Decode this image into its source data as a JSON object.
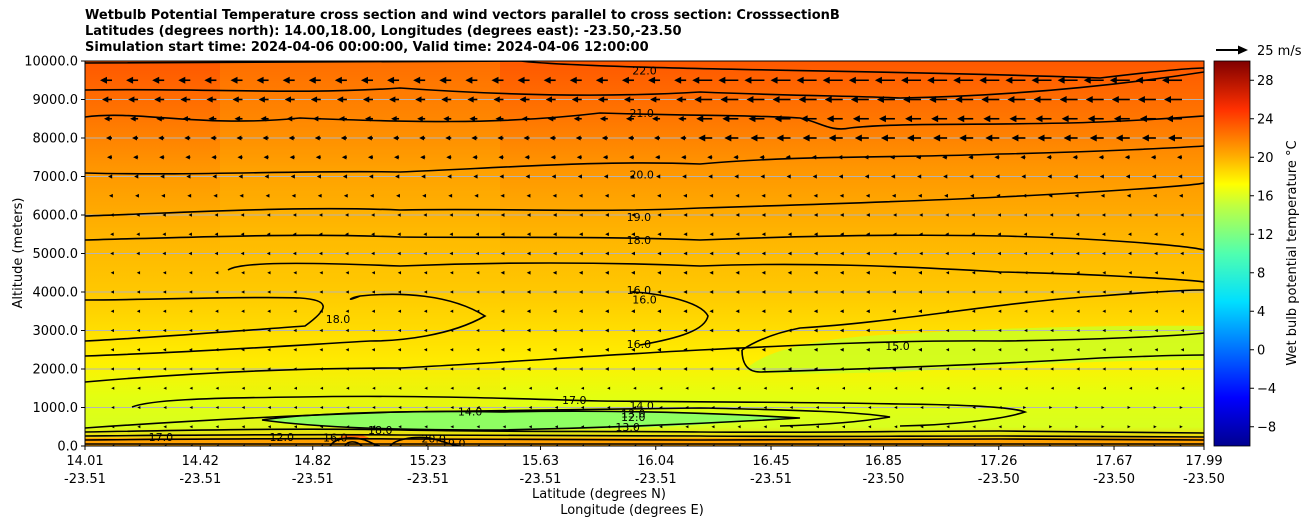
{
  "chart_data": {
    "type": "contourf",
    "title_lines": [
      "Wetbulb Potential Temperature cross section and wind vectors parallel to cross section: CrosssectionB",
      "Latitudes (degrees north): 14.00,18.00, Longitudes (degrees east): -23.50,-23.50",
      "Simulation start time: 2024-04-06 00:00:00, Valid time: 2024-04-06 12:00:00"
    ],
    "ylabel": "Altitude (meters)",
    "xlabel_lat": "Latitude (degrees N)",
    "xlabel_lon": "Longitude (degrees E)",
    "ylim": [
      0,
      10000
    ],
    "y_ticks": [
      0,
      1000,
      2000,
      3000,
      4000,
      5000,
      6000,
      7000,
      8000,
      9000,
      10000
    ],
    "y_tick_labels": [
      "0.0",
      "1000.0",
      "2000.0",
      "3000.0",
      "4000.0",
      "5000.0",
      "6000.0",
      "7000.0",
      "8000.0",
      "9000.0",
      "10000.0"
    ],
    "x_ticks_lat": [
      "14.01",
      "14.42",
      "14.82",
      "15.23",
      "15.63",
      "16.04",
      "16.45",
      "16.85",
      "17.26",
      "17.67",
      "17.99"
    ],
    "x_ticks_lon": [
      "-23.51",
      "-23.51",
      "-23.51",
      "-23.51",
      "-23.51",
      "-23.51",
      "-23.51",
      "-23.50",
      "-23.50",
      "-23.50",
      "-23.50"
    ],
    "colorbar": {
      "label": "Wet bulb potential temperature °C",
      "range": [
        -10,
        30
      ],
      "ticks": [
        -8,
        -4,
        0,
        4,
        8,
        12,
        16,
        20,
        24,
        28
      ],
      "tick_labels": [
        "−8",
        "−4",
        "0",
        "4",
        "8",
        "12",
        "16",
        "20",
        "24",
        "28"
      ]
    },
    "quiver_key": "25 m/s",
    "contour_labels": [
      {
        "text": "22.0",
        "lat": 16.0,
        "alt": 9750
      },
      {
        "text": "21.0",
        "lat": 15.99,
        "alt": 8650
      },
      {
        "text": "20.0",
        "lat": 15.99,
        "alt": 7050
      },
      {
        "text": "19.0",
        "lat": 15.98,
        "alt": 5950
      },
      {
        "text": "18.0",
        "lat": 15.98,
        "alt": 5350
      },
      {
        "text": "16.0",
        "lat": 15.98,
        "alt": 4050
      },
      {
        "text": "16.0",
        "lat": 16.0,
        "alt": 3800
      },
      {
        "text": "18.0",
        "lat": 14.91,
        "alt": 3300
      },
      {
        "text": "16.0",
        "lat": 15.98,
        "alt": 2650
      },
      {
        "text": "15.0",
        "lat": 16.9,
        "alt": 2600
      },
      {
        "text": "14.0",
        "lat": 15.99,
        "alt": 1050
      },
      {
        "text": "13.0",
        "lat": 15.96,
        "alt": 850
      },
      {
        "text": "12.0",
        "lat": 15.96,
        "alt": 750
      },
      {
        "text": "13.0",
        "lat": 15.94,
        "alt": 500
      },
      {
        "text": "14.0",
        "lat": 15.38,
        "alt": 900
      },
      {
        "text": "20.0",
        "lat": 15.25,
        "alt": 200
      },
      {
        "text": "12.0",
        "lat": 14.71,
        "alt": 230
      },
      {
        "text": "16.0",
        "lat": 14.9,
        "alt": 220
      },
      {
        "text": "18.0",
        "lat": 15.06,
        "alt": 420
      },
      {
        "text": "17.0",
        "lat": 14.28,
        "alt": 230
      },
      {
        "text": "19.0",
        "lat": 15.32,
        "alt": 80
      },
      {
        "text": "17.0",
        "lat": 15.75,
        "alt": 1200
      }
    ]
  }
}
